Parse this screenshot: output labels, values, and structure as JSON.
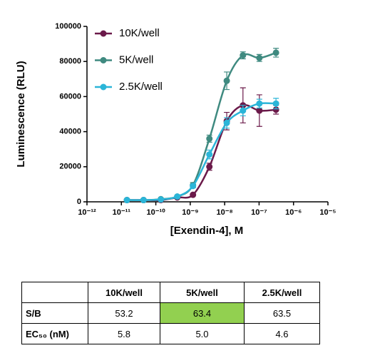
{
  "chart_data": {
    "type": "scatter-line",
    "xlabel": "[Exendin-4], M",
    "ylabel": "Luminescence (RLU)",
    "xscale": "log",
    "x": [
      1.45e-11,
      4.4e-11,
      1.4e-10,
      4.2e-10,
      1.2e-09,
      3.6e-09,
      1.15e-08,
      3.4e-08,
      1.02e-07,
      3.1e-07
    ],
    "series": [
      {
        "name": "10K/well",
        "color": "#6b1a4a",
        "values": [
          1000,
          1000,
          1000,
          2500,
          4000,
          20000,
          46000,
          55000,
          52000,
          52500
        ],
        "errors": [
          200,
          200,
          200,
          300,
          500,
          2000,
          5000,
          10000,
          9000,
          2500
        ]
      },
      {
        "name": "5K/well",
        "color": "#3f8a80",
        "values": [
          1000,
          1000,
          1500,
          3000,
          9500,
          36000,
          69000,
          83500,
          82000,
          85000
        ],
        "errors": [
          200,
          200,
          300,
          500,
          1500,
          2000,
          5000,
          2000,
          2000,
          2500
        ]
      },
      {
        "name": "2.5K/well",
        "color": "#2bb5d8",
        "values": [
          1000,
          1000,
          1300,
          3000,
          9000,
          27000,
          45000,
          52000,
          56000,
          56000
        ],
        "errors": [
          200,
          200,
          200,
          400,
          1000,
          2500,
          3000,
          3000,
          2500,
          3000
        ]
      }
    ],
    "xlim": [
      1e-12,
      1e-05
    ],
    "xticks": [
      {
        "value": 1e-12,
        "label": "10⁻¹²"
      },
      {
        "value": 1e-11,
        "label": "10⁻¹¹"
      },
      {
        "value": 1e-10,
        "label": "10⁻¹⁰"
      },
      {
        "value": 1e-09,
        "label": "10⁻⁹"
      },
      {
        "value": 1e-08,
        "label": "10⁻⁸"
      },
      {
        "value": 1e-07,
        "label": "10⁻⁷"
      },
      {
        "value": 1e-06,
        "label": "10⁻⁶"
      },
      {
        "value": 1e-05,
        "label": "10⁻⁵"
      }
    ],
    "ylim": [
      0,
      100000
    ],
    "yticks": [
      0,
      20000,
      40000,
      60000,
      80000,
      100000
    ],
    "legend": "upper left"
  },
  "table": {
    "header": [
      "10K/well",
      "5K/well",
      "2.5K/well"
    ],
    "rows": [
      [
        "S/B",
        "53.2",
        "63.4",
        "63.5"
      ],
      [
        "EC₅₀ (nM)",
        "5.8",
        "5.0",
        "4.6"
      ]
    ]
  }
}
